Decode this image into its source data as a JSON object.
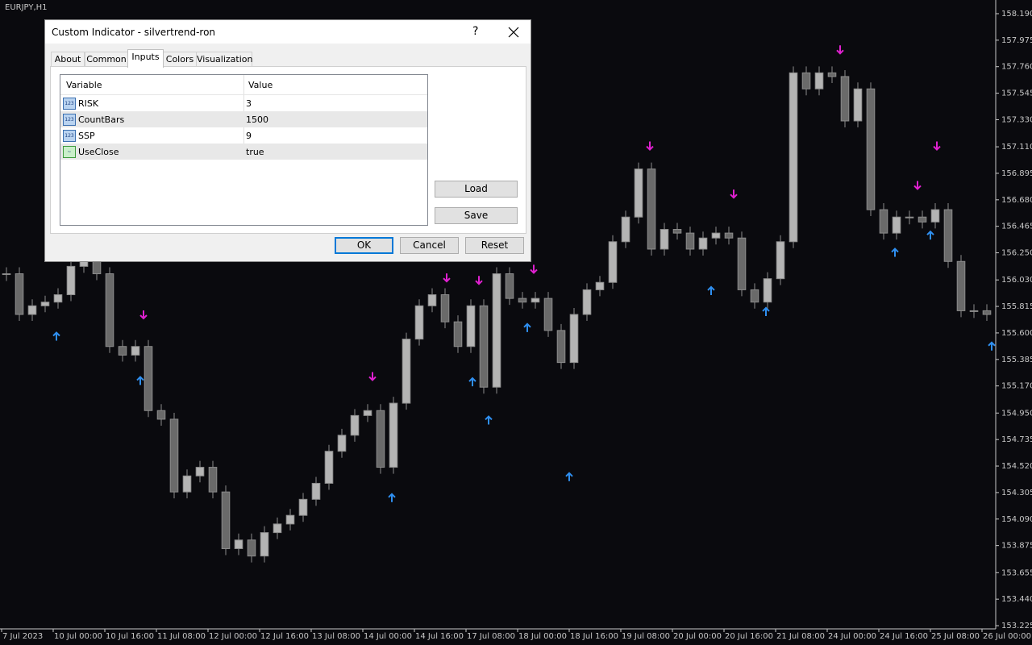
{
  "window": {
    "symbol": "EURJPY,H1"
  },
  "chart_data": {
    "type": "candlestick",
    "values": [
      156.08,
      155.75,
      155.82,
      155.85,
      155.91,
      156.14,
      156.21,
      156.08,
      155.49,
      155.42,
      155.49,
      154.97,
      154.9,
      154.31,
      154.44,
      154.51,
      154.31,
      153.85,
      153.92,
      153.79,
      153.98,
      154.05,
      154.12,
      154.25,
      154.38,
      154.64,
      154.77,
      154.93,
      154.97,
      154.51,
      155.03,
      155.55,
      155.82,
      155.91,
      155.69,
      155.49,
      155.82,
      155.16,
      156.08,
      155.88,
      155.85,
      155.88,
      155.62,
      155.36,
      155.75,
      155.95,
      156.01,
      156.34,
      156.54,
      156.93,
      156.28,
      156.44,
      156.41,
      156.28,
      156.37,
      156.41,
      156.37,
      155.95,
      155.85,
      156.04,
      156.34,
      157.71,
      157.58,
      157.71,
      157.68,
      157.32,
      157.58,
      156.6,
      156.41,
      156.54,
      156.54,
      156.5,
      156.6,
      156.18,
      155.78,
      155.78,
      155.75
    ],
    "color": "#8c8c8c",
    "xlim": [
      -0.5,
      76.5
    ],
    "ylim": [
      153.199,
      158.301
    ],
    "yticks": [
      {
        "value": 158.19,
        "label": "158.190"
      },
      {
        "value": 157.975,
        "label": "157.975"
      },
      {
        "value": 157.76,
        "label": "157.760"
      },
      {
        "value": 157.545,
        "label": "157.545"
      },
      {
        "value": 157.33,
        "label": "157.330"
      },
      {
        "value": 157.11,
        "label": "157.110"
      },
      {
        "value": 156.895,
        "label": "156.895"
      },
      {
        "value": 156.68,
        "label": "156.680"
      },
      {
        "value": 156.465,
        "label": "156.465"
      },
      {
        "value": 156.25,
        "label": "156.250"
      },
      {
        "value": 156.03,
        "label": "156.030"
      },
      {
        "value": 155.815,
        "label": "155.815"
      },
      {
        "value": 155.6,
        "label": "155.600"
      },
      {
        "value": 155.385,
        "label": "155.385"
      },
      {
        "value": 155.17,
        "label": "155.170"
      },
      {
        "value": 154.95,
        "label": "154.950"
      },
      {
        "value": 154.735,
        "label": "154.735"
      },
      {
        "value": 154.52,
        "label": "154.520"
      },
      {
        "value": 154.305,
        "label": "154.305"
      },
      {
        "value": 154.09,
        "label": "154.090"
      },
      {
        "value": 153.875,
        "label": "153.875"
      },
      {
        "value": 153.655,
        "label": "153.655"
      },
      {
        "value": 153.44,
        "label": "153.440"
      },
      {
        "value": 153.225,
        "label": "153.225"
      }
    ],
    "x_labels": [
      "7 Jul 2023",
      "10 Jul 00:00",
      "10 Jul 16:00",
      "11 Jul 08:00",
      "12 Jul 00:00",
      "12 Jul 16:00",
      "13 Jul 08:00",
      "14 Jul 00:00",
      "14 Jul 16:00",
      "17 Jul 08:00",
      "18 Jul 00:00",
      "18 Jul 16:00",
      "19 Jul 08:00",
      "20 Jul 00:00",
      "20 Jul 16:00",
      "21 Jul 08:00",
      "24 Jul 00:00",
      "24 Jul 16:00",
      "25 Jul 08:00",
      "26 Jul 00:00"
    ],
    "buy": {
      "color": "#2f8ff0",
      "x": [
        3.875,
        10.375,
        29.875,
        36.125,
        37.375,
        40.375,
        43.625,
        54.625,
        58.875,
        68.875,
        71.625,
        76.375
      ],
      "values": [
        155.57,
        155.21,
        154.26,
        155.2,
        154.89,
        155.64,
        154.43,
        155.94,
        155.77,
        156.25,
        156.39,
        155.49
      ]
    },
    "sell": {
      "color": "#e020d0",
      "x": [
        10.625,
        28.375,
        34.125,
        36.625,
        40.875,
        49.875,
        56.375,
        64.625,
        70.625,
        72.125
      ],
      "values": [
        155.75,
        155.25,
        156.05,
        156.03,
        156.12,
        157.12,
        156.73,
        157.9,
        156.8,
        157.12
      ]
    }
  },
  "dialog": {
    "title": "Custom Indicator - silvertrend-ron",
    "help": "?",
    "tabs": [
      "About",
      "Common",
      "Inputs",
      "Colors",
      "Visualization"
    ],
    "table": {
      "columns": [
        "Variable",
        "Value"
      ],
      "rows": [
        [
          "RISK",
          "3"
        ],
        [
          "CountBars",
          "1500"
        ],
        [
          "SSP",
          "9"
        ],
        [
          "UseClose",
          "true"
        ]
      ]
    },
    "buttons": {
      "load": "Load",
      "save": "Save",
      "ok": "OK",
      "cancel": "Cancel",
      "reset": "Reset"
    }
  }
}
